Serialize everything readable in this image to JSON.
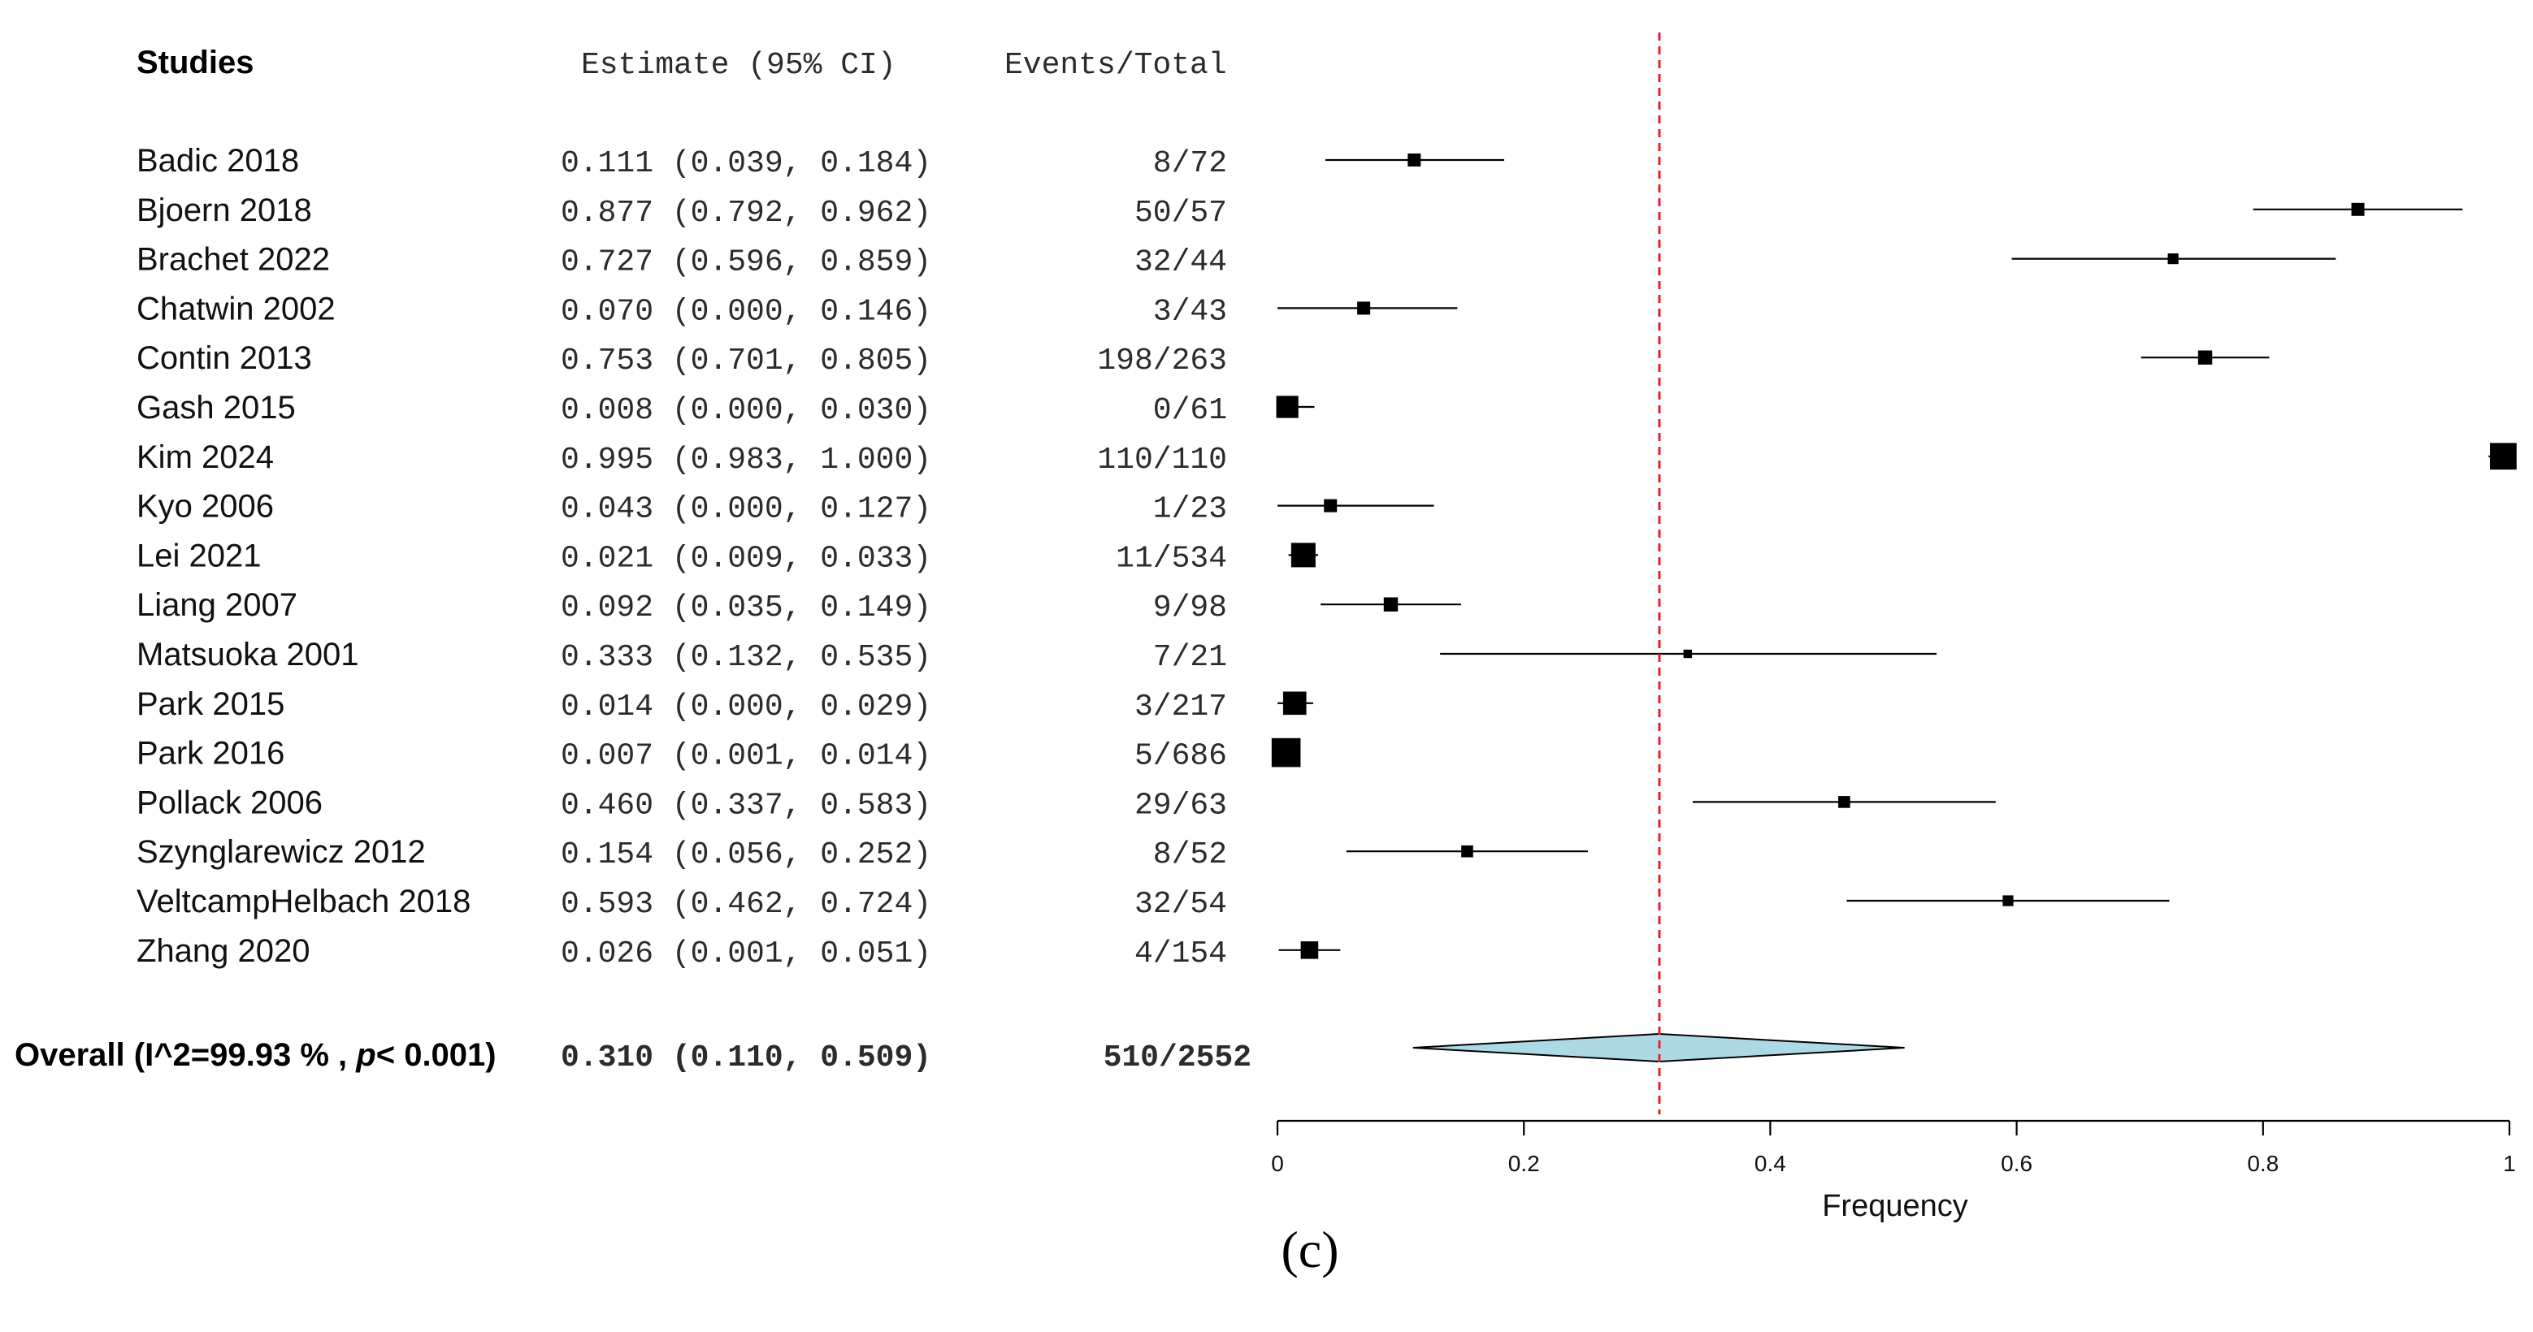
{
  "panel_label": "(c)",
  "chart_data": {
    "type": "forest",
    "headers": {
      "studies": "Studies",
      "estimate": "Estimate (95% CI)",
      "events": "Events/Total"
    },
    "studies": [
      {
        "name": "Badic 2018",
        "estimate": 0.111,
        "lower": 0.039,
        "upper": 0.184,
        "estimate_text": "0.111 (0.039, 0.184)",
        "events": "8/72",
        "weight": 1
      },
      {
        "name": "Bjoern 2018",
        "estimate": 0.877,
        "lower": 0.792,
        "upper": 0.962,
        "estimate_text": "0.877 (0.792, 0.962)",
        "events": "50/57",
        "weight": 1
      },
      {
        "name": "Brachet 2022",
        "estimate": 0.727,
        "lower": 0.596,
        "upper": 0.859,
        "estimate_text": "0.727 (0.596, 0.859)",
        "events": "32/44",
        "weight": 0.8
      },
      {
        "name": "Chatwin 2002",
        "estimate": 0.07,
        "lower": 0.0,
        "upper": 0.146,
        "estimate_text": "0.070 (0.000, 0.146)",
        "events": "3/43",
        "weight": 1
      },
      {
        "name": "Contin 2013",
        "estimate": 0.753,
        "lower": 0.701,
        "upper": 0.805,
        "estimate_text": "0.753 (0.701, 0.805)",
        "events": "198/263",
        "weight": 1.1
      },
      {
        "name": "Gash 2015",
        "estimate": 0.008,
        "lower": 0.0,
        "upper": 0.03,
        "estimate_text": "0.008 (0.000, 0.030)",
        "events": "0/61",
        "weight": 1.8
      },
      {
        "name": "Kim 2024",
        "estimate": 0.995,
        "lower": 0.983,
        "upper": 1.0,
        "estimate_text": "0.995 (0.983, 1.000)",
        "events": "110/110",
        "weight": 2.2
      },
      {
        "name": "Kyo 2006",
        "estimate": 0.043,
        "lower": 0.0,
        "upper": 0.127,
        "estimate_text": "0.043 (0.000, 0.127)",
        "events": "1/23",
        "weight": 1
      },
      {
        "name": "Lei 2021",
        "estimate": 0.021,
        "lower": 0.009,
        "upper": 0.033,
        "estimate_text": "0.021 (0.009, 0.033)",
        "events": "11/534",
        "weight": 2
      },
      {
        "name": "Liang 2007",
        "estimate": 0.092,
        "lower": 0.035,
        "upper": 0.149,
        "estimate_text": "0.092 (0.035, 0.149)",
        "events": "9/98",
        "weight": 1.1
      },
      {
        "name": "Matsuoka  2001",
        "estimate": 0.333,
        "lower": 0.132,
        "upper": 0.535,
        "estimate_text": "0.333 (0.132, 0.535)",
        "events": "7/21",
        "weight": 0.6
      },
      {
        "name": "Park 2015",
        "estimate": 0.014,
        "lower": 0.0,
        "upper": 0.029,
        "estimate_text": "0.014 (0.000, 0.029)",
        "events": "3/217",
        "weight": 1.9
      },
      {
        "name": "Park 2016",
        "estimate": 0.007,
        "lower": 0.001,
        "upper": 0.014,
        "estimate_text": "0.007 (0.001, 0.014)",
        "events": "5/686",
        "weight": 2.4
      },
      {
        "name": "Pollack 2006",
        "estimate": 0.46,
        "lower": 0.337,
        "upper": 0.583,
        "estimate_text": "0.460 (0.337, 0.583)",
        "events": "29/63",
        "weight": 0.9
      },
      {
        "name": "Szynglarewicz 2012",
        "estimate": 0.154,
        "lower": 0.056,
        "upper": 0.252,
        "estimate_text": "0.154 (0.056, 0.252)",
        "events": "8/52",
        "weight": 0.9
      },
      {
        "name": "VeltcampHelbach 2018",
        "estimate": 0.593,
        "lower": 0.462,
        "upper": 0.724,
        "estimate_text": "0.593 (0.462, 0.724)",
        "events": "32/54",
        "weight": 0.8
      },
      {
        "name": "Zhang 2020",
        "estimate": 0.026,
        "lower": 0.001,
        "upper": 0.051,
        "estimate_text": "0.026 (0.001, 0.051)",
        "events": "4/154",
        "weight": 1.4
      }
    ],
    "overall": {
      "label_prefix": "Overall (I^2=99.93 % , ",
      "label_p": "p",
      "label_suffix": "< 0.001)",
      "estimate": 0.31,
      "lower": 0.11,
      "upper": 0.509,
      "estimate_text": "0.310 (0.110, 0.509)",
      "events": "510/2552",
      "fill_color": "#add8e6"
    },
    "reference_line": {
      "value": 0.31,
      "color": "#e8202a"
    },
    "x_axis": {
      "label": "Frequency",
      "min": 0,
      "max": 1,
      "ticks": [
        0,
        0.2,
        0.4,
        0.6,
        0.8,
        1
      ],
      "tick_labels": [
        "0",
        "0.2",
        "0.4",
        "0.6",
        "0.8",
        "1"
      ]
    }
  }
}
